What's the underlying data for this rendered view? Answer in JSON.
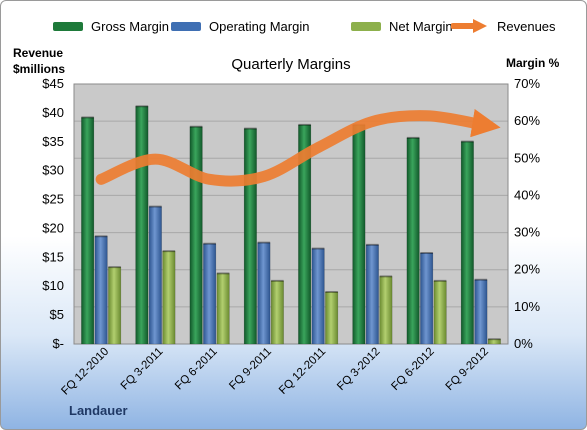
{
  "chart_data": {
    "type": "bar",
    "title": "Quarterly Margins",
    "categories": [
      "FQ 12-2010",
      "FQ 3-2011",
      "FQ 6-2011",
      "FQ 9-2011",
      "FQ 12-2011",
      "FQ 3-2012",
      "FQ 6-2012",
      "FQ 9-2012"
    ],
    "series": [
      {
        "name": "Gross Margin",
        "axis": "right",
        "color": "#1e7a3a",
        "values": [
          61,
          64,
          58.5,
          58,
          59,
          59,
          55.5,
          54.5
        ]
      },
      {
        "name": "Operating Margin",
        "axis": "right",
        "color": "#3f6fb3",
        "values": [
          29,
          37,
          27,
          27.3,
          25.7,
          26.7,
          24.5,
          17.3
        ]
      },
      {
        "name": "Net Margin",
        "axis": "right",
        "color": "#8db04c",
        "values": [
          20.7,
          25,
          19,
          17,
          14,
          18.2,
          17,
          1.3
        ]
      }
    ],
    "revenues": {
      "name": "Revenues",
      "axis": "left",
      "color": "#ed7d31",
      "values": [
        28.5,
        32,
        28.5,
        29,
        34,
        38.5,
        39.5,
        38
      ]
    },
    "left_axis": {
      "label": "Revenue\n$millions",
      "min": 0,
      "max": 45,
      "step": 5,
      "tick_labels": [
        "$-",
        "$5",
        "$10",
        "$15",
        "$20",
        "$25",
        "$30",
        "$35",
        "$40",
        "$45"
      ]
    },
    "right_axis": {
      "label": "Margin %",
      "min": 0,
      "max": 70,
      "step": 10,
      "tick_labels": [
        "0%",
        "10%",
        "20%",
        "30%",
        "40%",
        "50%",
        "60%",
        "70%"
      ]
    },
    "grid": true,
    "legend_position": "top",
    "footer": "Landauer",
    "colors": {
      "plot_background": "#c9c9c9",
      "gridline": "#a8a8a8",
      "frame_border": "#9a9a9a"
    }
  }
}
